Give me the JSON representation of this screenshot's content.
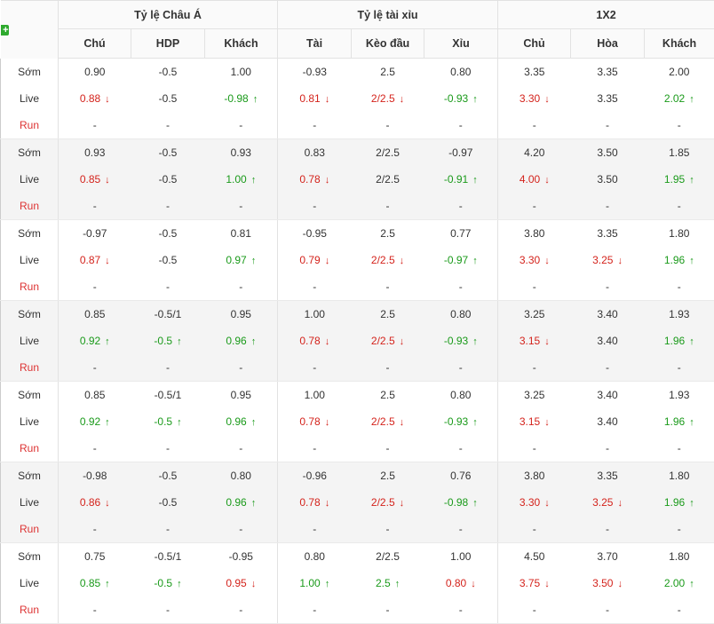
{
  "header": {
    "groups": [
      "Tỷ lệ Châu Á",
      "Tỷ lệ tài xỉu",
      "1X2"
    ],
    "columns": [
      "Chú",
      "HDP",
      "Khách",
      "Tài",
      "Kèo đầu",
      "Xỉu",
      "Chủ",
      "Hòa",
      "Khách"
    ],
    "plus": "+"
  },
  "row_labels": [
    "Sớm",
    "Live",
    "Run"
  ],
  "colors": {
    "up": "#1a9a1a",
    "down": "#d4231c",
    "run": "#d33333"
  },
  "companies": [
    {
      "rows": [
        [
          [
            "0.90",
            ""
          ],
          [
            "-0.5",
            ""
          ],
          [
            "1.00",
            ""
          ],
          [
            "-0.93",
            ""
          ],
          [
            "2.5",
            ""
          ],
          [
            "0.80",
            ""
          ],
          [
            "3.35",
            ""
          ],
          [
            "3.35",
            ""
          ],
          [
            "2.00",
            ""
          ]
        ],
        [
          [
            "0.88",
            "d"
          ],
          [
            "-0.5",
            ""
          ],
          [
            "-0.98",
            "u"
          ],
          [
            "0.81",
            "d"
          ],
          [
            "2/2.5",
            "d"
          ],
          [
            "-0.93",
            "u"
          ],
          [
            "3.30",
            "d"
          ],
          [
            "3.35",
            ""
          ],
          [
            "2.02",
            "u"
          ]
        ],
        [
          [
            "-",
            ""
          ],
          [
            "-",
            ""
          ],
          [
            "-",
            ""
          ],
          [
            "-",
            ""
          ],
          [
            "-",
            ""
          ],
          [
            "-",
            ""
          ],
          [
            "-",
            ""
          ],
          [
            "-",
            ""
          ],
          [
            "-",
            ""
          ]
        ]
      ]
    },
    {
      "rows": [
        [
          [
            "0.93",
            ""
          ],
          [
            "-0.5",
            ""
          ],
          [
            "0.93",
            ""
          ],
          [
            "0.83",
            ""
          ],
          [
            "2/2.5",
            ""
          ],
          [
            "-0.97",
            ""
          ],
          [
            "4.20",
            ""
          ],
          [
            "3.50",
            ""
          ],
          [
            "1.85",
            ""
          ]
        ],
        [
          [
            "0.85",
            "d"
          ],
          [
            "-0.5",
            ""
          ],
          [
            "1.00",
            "u"
          ],
          [
            "0.78",
            "d"
          ],
          [
            "2/2.5",
            ""
          ],
          [
            "-0.91",
            "u"
          ],
          [
            "4.00",
            "d"
          ],
          [
            "3.50",
            ""
          ],
          [
            "1.95",
            "u"
          ]
        ],
        [
          [
            "-",
            ""
          ],
          [
            "-",
            ""
          ],
          [
            "-",
            ""
          ],
          [
            "-",
            ""
          ],
          [
            "-",
            ""
          ],
          [
            "-",
            ""
          ],
          [
            "-",
            ""
          ],
          [
            "-",
            ""
          ],
          [
            "-",
            ""
          ]
        ]
      ]
    },
    {
      "rows": [
        [
          [
            "-0.97",
            ""
          ],
          [
            "-0.5",
            ""
          ],
          [
            "0.81",
            ""
          ],
          [
            "-0.95",
            ""
          ],
          [
            "2.5",
            ""
          ],
          [
            "0.77",
            ""
          ],
          [
            "3.80",
            ""
          ],
          [
            "3.35",
            ""
          ],
          [
            "1.80",
            ""
          ]
        ],
        [
          [
            "0.87",
            "d"
          ],
          [
            "-0.5",
            ""
          ],
          [
            "0.97",
            "u"
          ],
          [
            "0.79",
            "d"
          ],
          [
            "2/2.5",
            "d"
          ],
          [
            "-0.97",
            "u"
          ],
          [
            "3.30",
            "d"
          ],
          [
            "3.25",
            "d"
          ],
          [
            "1.96",
            "u"
          ]
        ],
        [
          [
            "-",
            ""
          ],
          [
            "-",
            ""
          ],
          [
            "-",
            ""
          ],
          [
            "-",
            ""
          ],
          [
            "-",
            ""
          ],
          [
            "-",
            ""
          ],
          [
            "-",
            ""
          ],
          [
            "-",
            ""
          ],
          [
            "-",
            ""
          ]
        ]
      ]
    },
    {
      "rows": [
        [
          [
            "0.85",
            ""
          ],
          [
            "-0.5/1",
            ""
          ],
          [
            "0.95",
            ""
          ],
          [
            "1.00",
            ""
          ],
          [
            "2.5",
            ""
          ],
          [
            "0.80",
            ""
          ],
          [
            "3.25",
            ""
          ],
          [
            "3.40",
            ""
          ],
          [
            "1.93",
            ""
          ]
        ],
        [
          [
            "0.92",
            "u"
          ],
          [
            "-0.5",
            "u"
          ],
          [
            "0.96",
            "u"
          ],
          [
            "0.78",
            "d"
          ],
          [
            "2/2.5",
            "d"
          ],
          [
            "-0.93",
            "u"
          ],
          [
            "3.15",
            "d"
          ],
          [
            "3.40",
            ""
          ],
          [
            "1.96",
            "u"
          ]
        ],
        [
          [
            "-",
            ""
          ],
          [
            "-",
            ""
          ],
          [
            "-",
            ""
          ],
          [
            "-",
            ""
          ],
          [
            "-",
            ""
          ],
          [
            "-",
            ""
          ],
          [
            "-",
            ""
          ],
          [
            "-",
            ""
          ],
          [
            "-",
            ""
          ]
        ]
      ]
    },
    {
      "rows": [
        [
          [
            "0.85",
            ""
          ],
          [
            "-0.5/1",
            ""
          ],
          [
            "0.95",
            ""
          ],
          [
            "1.00",
            ""
          ],
          [
            "2.5",
            ""
          ],
          [
            "0.80",
            ""
          ],
          [
            "3.25",
            ""
          ],
          [
            "3.40",
            ""
          ],
          [
            "1.93",
            ""
          ]
        ],
        [
          [
            "0.92",
            "u"
          ],
          [
            "-0.5",
            "u"
          ],
          [
            "0.96",
            "u"
          ],
          [
            "0.78",
            "d"
          ],
          [
            "2/2.5",
            "d"
          ],
          [
            "-0.93",
            "u"
          ],
          [
            "3.15",
            "d"
          ],
          [
            "3.40",
            ""
          ],
          [
            "1.96",
            "u"
          ]
        ],
        [
          [
            "-",
            ""
          ],
          [
            "-",
            ""
          ],
          [
            "-",
            ""
          ],
          [
            "-",
            ""
          ],
          [
            "-",
            ""
          ],
          [
            "-",
            ""
          ],
          [
            "-",
            ""
          ],
          [
            "-",
            ""
          ],
          [
            "-",
            ""
          ]
        ]
      ]
    },
    {
      "rows": [
        [
          [
            "-0.98",
            ""
          ],
          [
            "-0.5",
            ""
          ],
          [
            "0.80",
            ""
          ],
          [
            "-0.96",
            ""
          ],
          [
            "2.5",
            ""
          ],
          [
            "0.76",
            ""
          ],
          [
            "3.80",
            ""
          ],
          [
            "3.35",
            ""
          ],
          [
            "1.80",
            ""
          ]
        ],
        [
          [
            "0.86",
            "d"
          ],
          [
            "-0.5",
            ""
          ],
          [
            "0.96",
            "u"
          ],
          [
            "0.78",
            "d"
          ],
          [
            "2/2.5",
            "d"
          ],
          [
            "-0.98",
            "u"
          ],
          [
            "3.30",
            "d"
          ],
          [
            "3.25",
            "d"
          ],
          [
            "1.96",
            "u"
          ]
        ],
        [
          [
            "-",
            ""
          ],
          [
            "-",
            ""
          ],
          [
            "-",
            ""
          ],
          [
            "-",
            ""
          ],
          [
            "-",
            ""
          ],
          [
            "-",
            ""
          ],
          [
            "-",
            ""
          ],
          [
            "-",
            ""
          ],
          [
            "-",
            ""
          ]
        ]
      ]
    },
    {
      "rows": [
        [
          [
            "0.75",
            ""
          ],
          [
            "-0.5/1",
            ""
          ],
          [
            "-0.95",
            ""
          ],
          [
            "0.80",
            ""
          ],
          [
            "2/2.5",
            ""
          ],
          [
            "1.00",
            ""
          ],
          [
            "4.50",
            ""
          ],
          [
            "3.70",
            ""
          ],
          [
            "1.80",
            ""
          ]
        ],
        [
          [
            "0.85",
            "u"
          ],
          [
            "-0.5",
            "u"
          ],
          [
            "0.95",
            "d"
          ],
          [
            "1.00",
            "u"
          ],
          [
            "2.5",
            "u"
          ],
          [
            "0.80",
            "d"
          ],
          [
            "3.75",
            "d"
          ],
          [
            "3.50",
            "d"
          ],
          [
            "2.00",
            "u"
          ]
        ],
        [
          [
            "-",
            ""
          ],
          [
            "-",
            ""
          ],
          [
            "-",
            ""
          ],
          [
            "-",
            ""
          ],
          [
            "-",
            ""
          ],
          [
            "-",
            ""
          ],
          [
            "-",
            ""
          ],
          [
            "-",
            ""
          ],
          [
            "-",
            ""
          ]
        ]
      ]
    }
  ]
}
